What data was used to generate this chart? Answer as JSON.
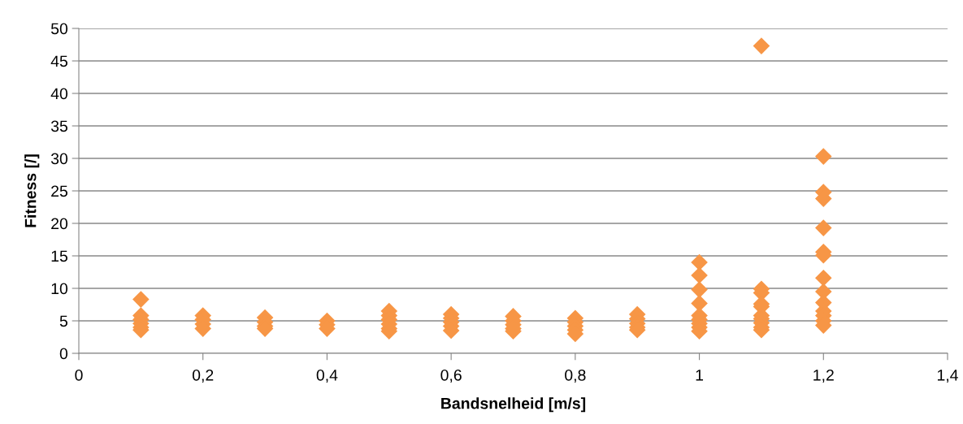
{
  "chart_data": {
    "type": "scatter",
    "xlabel": "Bandsnelheid [m/s]",
    "ylabel": "Fitness [/]",
    "x": [
      0.1,
      0.1,
      0.1,
      0.1,
      0.1,
      0.1,
      0.2,
      0.2,
      0.2,
      0.2,
      0.3,
      0.3,
      0.3,
      0.3,
      0.4,
      0.4,
      0.4,
      0.5,
      0.5,
      0.5,
      0.5,
      0.5,
      0.5,
      0.6,
      0.6,
      0.6,
      0.6,
      0.6,
      0.7,
      0.7,
      0.7,
      0.7,
      0.7,
      0.8,
      0.8,
      0.8,
      0.8,
      0.8,
      0.9,
      0.9,
      0.9,
      0.9,
      0.9,
      1.0,
      1.0,
      1.0,
      1.0,
      1.0,
      1.0,
      1.0,
      1.0,
      1.0,
      1.1,
      1.1,
      1.1,
      1.1,
      1.1,
      1.1,
      1.1,
      1.1,
      1.1,
      1.1,
      1.2,
      1.2,
      1.2,
      1.2,
      1.2,
      1.2,
      1.2,
      1.2,
      1.2,
      1.2,
      1.2,
      1.2,
      1.2
    ],
    "values": [
      8.3,
      5.8,
      5.2,
      4.6,
      4.0,
      3.6,
      5.8,
      5.2,
      4.5,
      3.8,
      5.5,
      4.8,
      4.2,
      3.8,
      5.0,
      4.4,
      3.8,
      6.5,
      5.8,
      5.2,
      4.5,
      3.8,
      3.4,
      6.0,
      5.4,
      4.8,
      4.2,
      3.5,
      5.7,
      5.0,
      4.4,
      3.8,
      3.4,
      5.4,
      4.8,
      4.2,
      3.6,
      3.0,
      6.0,
      5.3,
      4.6,
      4.0,
      3.6,
      14.0,
      12.0,
      9.8,
      7.7,
      5.8,
      5.2,
      4.6,
      4.0,
      3.4,
      47.3,
      9.9,
      9.3,
      7.6,
      7.2,
      5.8,
      5.3,
      4.7,
      4.0,
      3.6,
      30.3,
      24.8,
      23.8,
      19.3,
      15.6,
      15.1,
      11.6,
      9.5,
      7.8,
      6.5,
      5.8,
      5.0,
      4.3
    ],
    "color": "#f79646",
    "marker": "diamond",
    "grid": "y",
    "xlim": [
      0,
      1.4
    ],
    "xticks": [
      0,
      {
        "value": 0.2,
        "label": "0,2"
      },
      {
        "value": 0.4,
        "label": "0,4"
      },
      {
        "value": 0.6,
        "label": "0,6"
      },
      {
        "value": 0.8,
        "label": "0,8"
      },
      1,
      {
        "value": 1.2,
        "label": "1,2"
      },
      {
        "value": 1.4,
        "label": "1,4"
      }
    ],
    "ylim": [
      0,
      50
    ],
    "yticks": [
      0,
      5,
      10,
      15,
      20,
      25,
      30,
      35,
      40,
      45,
      50
    ]
  }
}
